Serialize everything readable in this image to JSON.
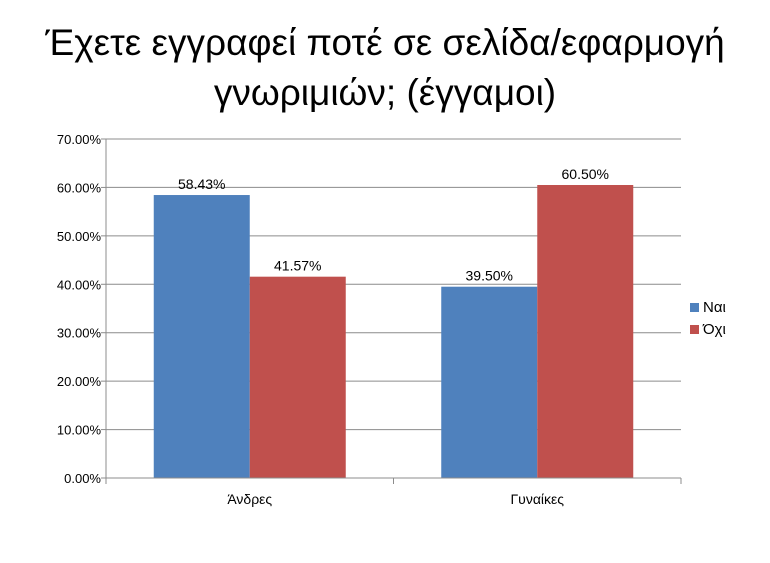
{
  "title": {
    "line1": "Έχετε εγγραφεί ποτέ σε σελίδα/εφαρμογή",
    "line2": "γνωριμιών; (έγγαμοι)"
  },
  "chart_data": {
    "type": "bar",
    "title": "Έχετε εγγραφεί ποτέ σε σελίδα/εφαρμογή γνωριμιών; (έγγαμοι)",
    "categories": [
      "Άνδρες",
      "Γυναίκες"
    ],
    "series": [
      {
        "name": "Ναι",
        "values": [
          58.43,
          39.5
        ],
        "labels": [
          "58.43%",
          "39.50%"
        ],
        "color": "#4F81BD"
      },
      {
        "name": "Όχι",
        "values": [
          41.57,
          60.5
        ],
        "labels": [
          "41.57%",
          "60.50%"
        ],
        "color": "#C0504D"
      }
    ],
    "yticks": [
      "0.00%",
      "10.00%",
      "20.00%",
      "30.00%",
      "40.00%",
      "50.00%",
      "60.00%",
      "70.00%"
    ],
    "ylim": [
      0,
      70
    ],
    "ystep": 10,
    "grid": true,
    "legend": "right",
    "xlabel": "",
    "ylabel": ""
  }
}
